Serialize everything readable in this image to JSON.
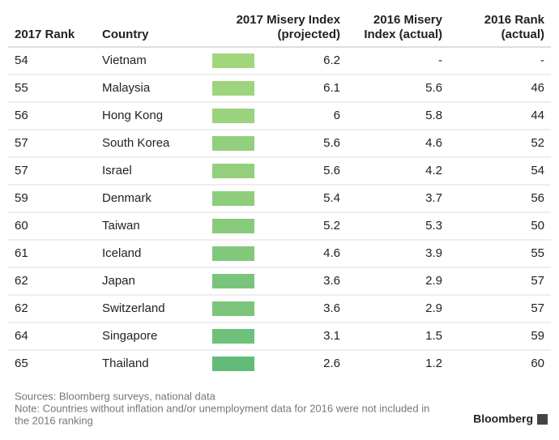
{
  "table": {
    "header": [
      "2017 Rank",
      "Country",
      [
        "2017 Misery Index",
        "(projected)"
      ],
      [
        "2016 Misery",
        "Index (actual)"
      ],
      [
        "2016 Rank",
        "(actual)"
      ]
    ],
    "rows": [
      [
        "54",
        "Vietnam",
        "6.2",
        "-",
        "-"
      ],
      [
        "55",
        "Malaysia",
        "6.1",
        "5.6",
        "46"
      ],
      [
        "56",
        "Hong Kong",
        "6",
        "5.8",
        "44"
      ],
      [
        "57",
        "South Korea",
        "5.6",
        "4.6",
        "52"
      ],
      [
        "57",
        "Israel",
        "5.6",
        "4.2",
        "54"
      ],
      [
        "59",
        "Denmark",
        "5.4",
        "3.7",
        "56"
      ],
      [
        "60",
        "Taiwan",
        "5.2",
        "5.3",
        "50"
      ],
      [
        "61",
        "Iceland",
        "4.6",
        "3.9",
        "55"
      ],
      [
        "62",
        "Japan",
        "3.6",
        "2.9",
        "57"
      ],
      [
        "62",
        "Switzerland",
        "3.6",
        "2.9",
        "57"
      ],
      [
        "64",
        "Singapore",
        "3.1",
        "1.5",
        "59"
      ],
      [
        "65",
        "Thailand",
        "2.6",
        "1.2",
        "60"
      ]
    ],
    "bar_colors": [
      "#a2d67d",
      "#9ed47d",
      "#9ad27d",
      "#93cf7c",
      "#93cf7c",
      "#8ecd7c",
      "#89cb7c",
      "#81c87b",
      "#7ac57b",
      "#7ac57b",
      "#6ec17a",
      "#62bc78"
    ]
  },
  "footer": {
    "notes": [
      "Sources: Bloomberg surveys, national data",
      "Note: Countries without inflation and/or unemployment data for 2016 were not included in",
      "the 2016 ranking"
    ],
    "brand": "Bloomberg"
  }
}
